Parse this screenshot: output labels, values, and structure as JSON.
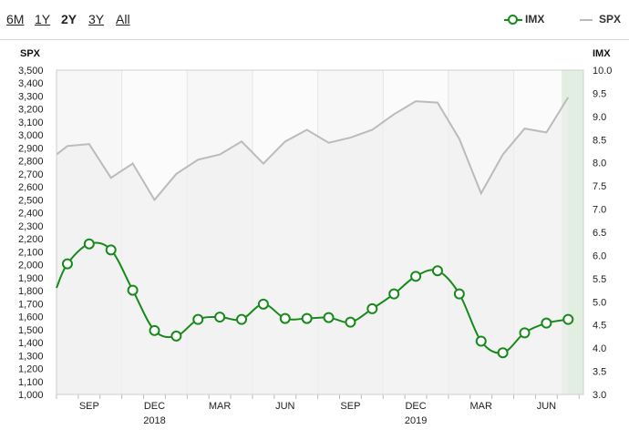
{
  "ranges": [
    {
      "label": "6M",
      "active": false
    },
    {
      "label": "1Y",
      "active": false
    },
    {
      "label": "2Y",
      "active": true
    },
    {
      "label": "3Y",
      "active": false
    },
    {
      "label": "All",
      "active": false
    }
  ],
  "legend": {
    "imx_label": "IMX",
    "spx_label": "SPX",
    "imx_color": "#178a1b",
    "spx_color": "#bbbbbb"
  },
  "chart_data": {
    "type": "line",
    "left_axis": {
      "title": "SPX",
      "ylim": [
        1000,
        3500
      ],
      "ticks": [
        "1,000",
        "1,100",
        "1,200",
        "1,300",
        "1,400",
        "1,500",
        "1,600",
        "1,700",
        "1,800",
        "1,900",
        "2,000",
        "2,100",
        "2,200",
        "2,300",
        "2,400",
        "2,500",
        "2,600",
        "2,700",
        "2,800",
        "2,900",
        "3,000",
        "3,100",
        "3,200",
        "3,300",
        "3,400",
        "3,500"
      ]
    },
    "right_axis": {
      "title": "IMX",
      "ylim": [
        3.0,
        10.0
      ],
      "ticks": [
        "3.0",
        "3.5",
        "4.0",
        "4.5",
        "5.0",
        "5.5",
        "6.0",
        "6.5",
        "7.0",
        "7.5",
        "8.0",
        "8.5",
        "9.0",
        "9.5",
        "10.0"
      ]
    },
    "x_ticks": [
      {
        "label": "SEP",
        "t": 1.5
      },
      {
        "label": "DEC",
        "t": 4.5
      },
      {
        "label": "MAR",
        "t": 7.5
      },
      {
        "label": "JUN",
        "t": 10.5
      },
      {
        "label": "SEP",
        "t": 13.5
      },
      {
        "label": "DEC",
        "t": 16.5
      },
      {
        "label": "MAR",
        "t": 19.5
      },
      {
        "label": "JUN",
        "t": 22.5
      }
    ],
    "year_labels": [
      {
        "label": "2018",
        "t": 4.5
      },
      {
        "label": "2019",
        "t": 16.5
      }
    ],
    "xlim": [
      0,
      24.2
    ],
    "highlight_band": [
      23.2,
      24.2
    ],
    "series": [
      {
        "name": "SPX",
        "axis": "left",
        "x": [
          0,
          0.5,
          1.5,
          2.5,
          3.5,
          4.5,
          5.5,
          6.5,
          7.5,
          8.5,
          9.5,
          10.5,
          11.5,
          12.5,
          13.5,
          14.5,
          15.5,
          16.5,
          17.5,
          18.5,
          19.5,
          20.5,
          21.5,
          22.5,
          23.5
        ],
        "values": [
          2850,
          2915,
          2930,
          2670,
          2780,
          2500,
          2700,
          2810,
          2850,
          2950,
          2780,
          2950,
          3040,
          2940,
          2980,
          3040,
          3160,
          3260,
          3250,
          2970,
          2550,
          2850,
          3050,
          3020,
          3290
        ]
      },
      {
        "name": "IMX",
        "axis": "right",
        "x": [
          0,
          0.5,
          1.5,
          2.5,
          3.5,
          4.5,
          5.5,
          6.5,
          7.5,
          8.5,
          9.5,
          10.5,
          11.5,
          12.5,
          13.5,
          14.5,
          15.5,
          16.5,
          17.5,
          18.5,
          19.5,
          20.5,
          21.5,
          22.5,
          23.5
        ],
        "values": [
          5.3,
          5.82,
          6.25,
          6.12,
          5.25,
          4.38,
          4.26,
          4.62,
          4.67,
          4.62,
          4.95,
          4.64,
          4.64,
          4.66,
          4.56,
          4.85,
          5.17,
          5.55,
          5.67,
          5.17,
          4.15,
          3.9,
          4.33,
          4.54,
          4.62
        ]
      }
    ]
  }
}
